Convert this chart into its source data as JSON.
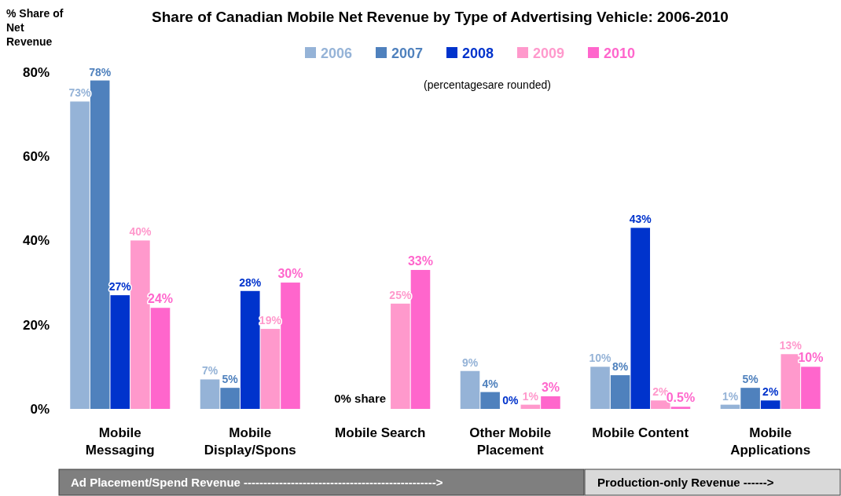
{
  "chart_data": {
    "type": "bar",
    "title": "Share of Canadian Mobile Net Revenue by Type of Advertising Vehicle: 2006-2010",
    "ylabel": "% Share of Net Revenue",
    "categories": [
      "Mobile Messaging",
      "Mobile Display/Spons",
      "Mobile Search",
      "Other Mobile Placement",
      "Mobile Content",
      "Mobile Applications"
    ],
    "series": [
      {
        "name": "2006",
        "color": "#95b3d7",
        "values": [
          73,
          7,
          0,
          9,
          10,
          1
        ],
        "value_labels": [
          "73%",
          "7%",
          null,
          "9%",
          "10%",
          "1%"
        ]
      },
      {
        "name": "2007",
        "color": "#4f81bd",
        "values": [
          78,
          5,
          0,
          4,
          8,
          5
        ],
        "value_labels": [
          "78%",
          "5%",
          null,
          "4%",
          "8%",
          "5%"
        ]
      },
      {
        "name": "2008",
        "color": "#0033cc",
        "values": [
          27,
          28,
          0,
          0,
          43,
          2
        ],
        "value_labels": [
          "27%",
          "28%",
          null,
          "0%",
          "43%",
          "2%"
        ]
      },
      {
        "name": "2009",
        "color": "#ff99cc",
        "values": [
          40,
          19,
          25,
          1,
          2,
          13
        ],
        "value_labels": [
          "40%",
          "19%",
          "25%",
          "1%",
          "2%",
          "13%"
        ]
      },
      {
        "name": "2010",
        "color": "#ff66cc",
        "values": [
          24,
          30,
          33,
          3,
          0.5,
          10
        ],
        "value_labels": [
          "24%",
          "30%",
          "33%",
          "3%",
          "0.5%",
          "10%"
        ]
      }
    ],
    "ylim": [
      0,
      85
    ],
    "yticks": [
      {
        "value": 0,
        "label": "0%"
      },
      {
        "value": 20,
        "label": "20%"
      },
      {
        "value": 40,
        "label": "40%"
      },
      {
        "value": 60,
        "label": "60%"
      },
      {
        "value": 80,
        "label": "80%"
      }
    ],
    "grid": false,
    "legend": "top",
    "annotations": [
      "(percentagesare rounded)",
      {
        "text": "0% share",
        "x": "Mobile Search",
        "y": 0
      },
      "Ad Placement/Spend Revenue ------------------------------------------------->",
      "Production-only Revenue ------>"
    ]
  }
}
